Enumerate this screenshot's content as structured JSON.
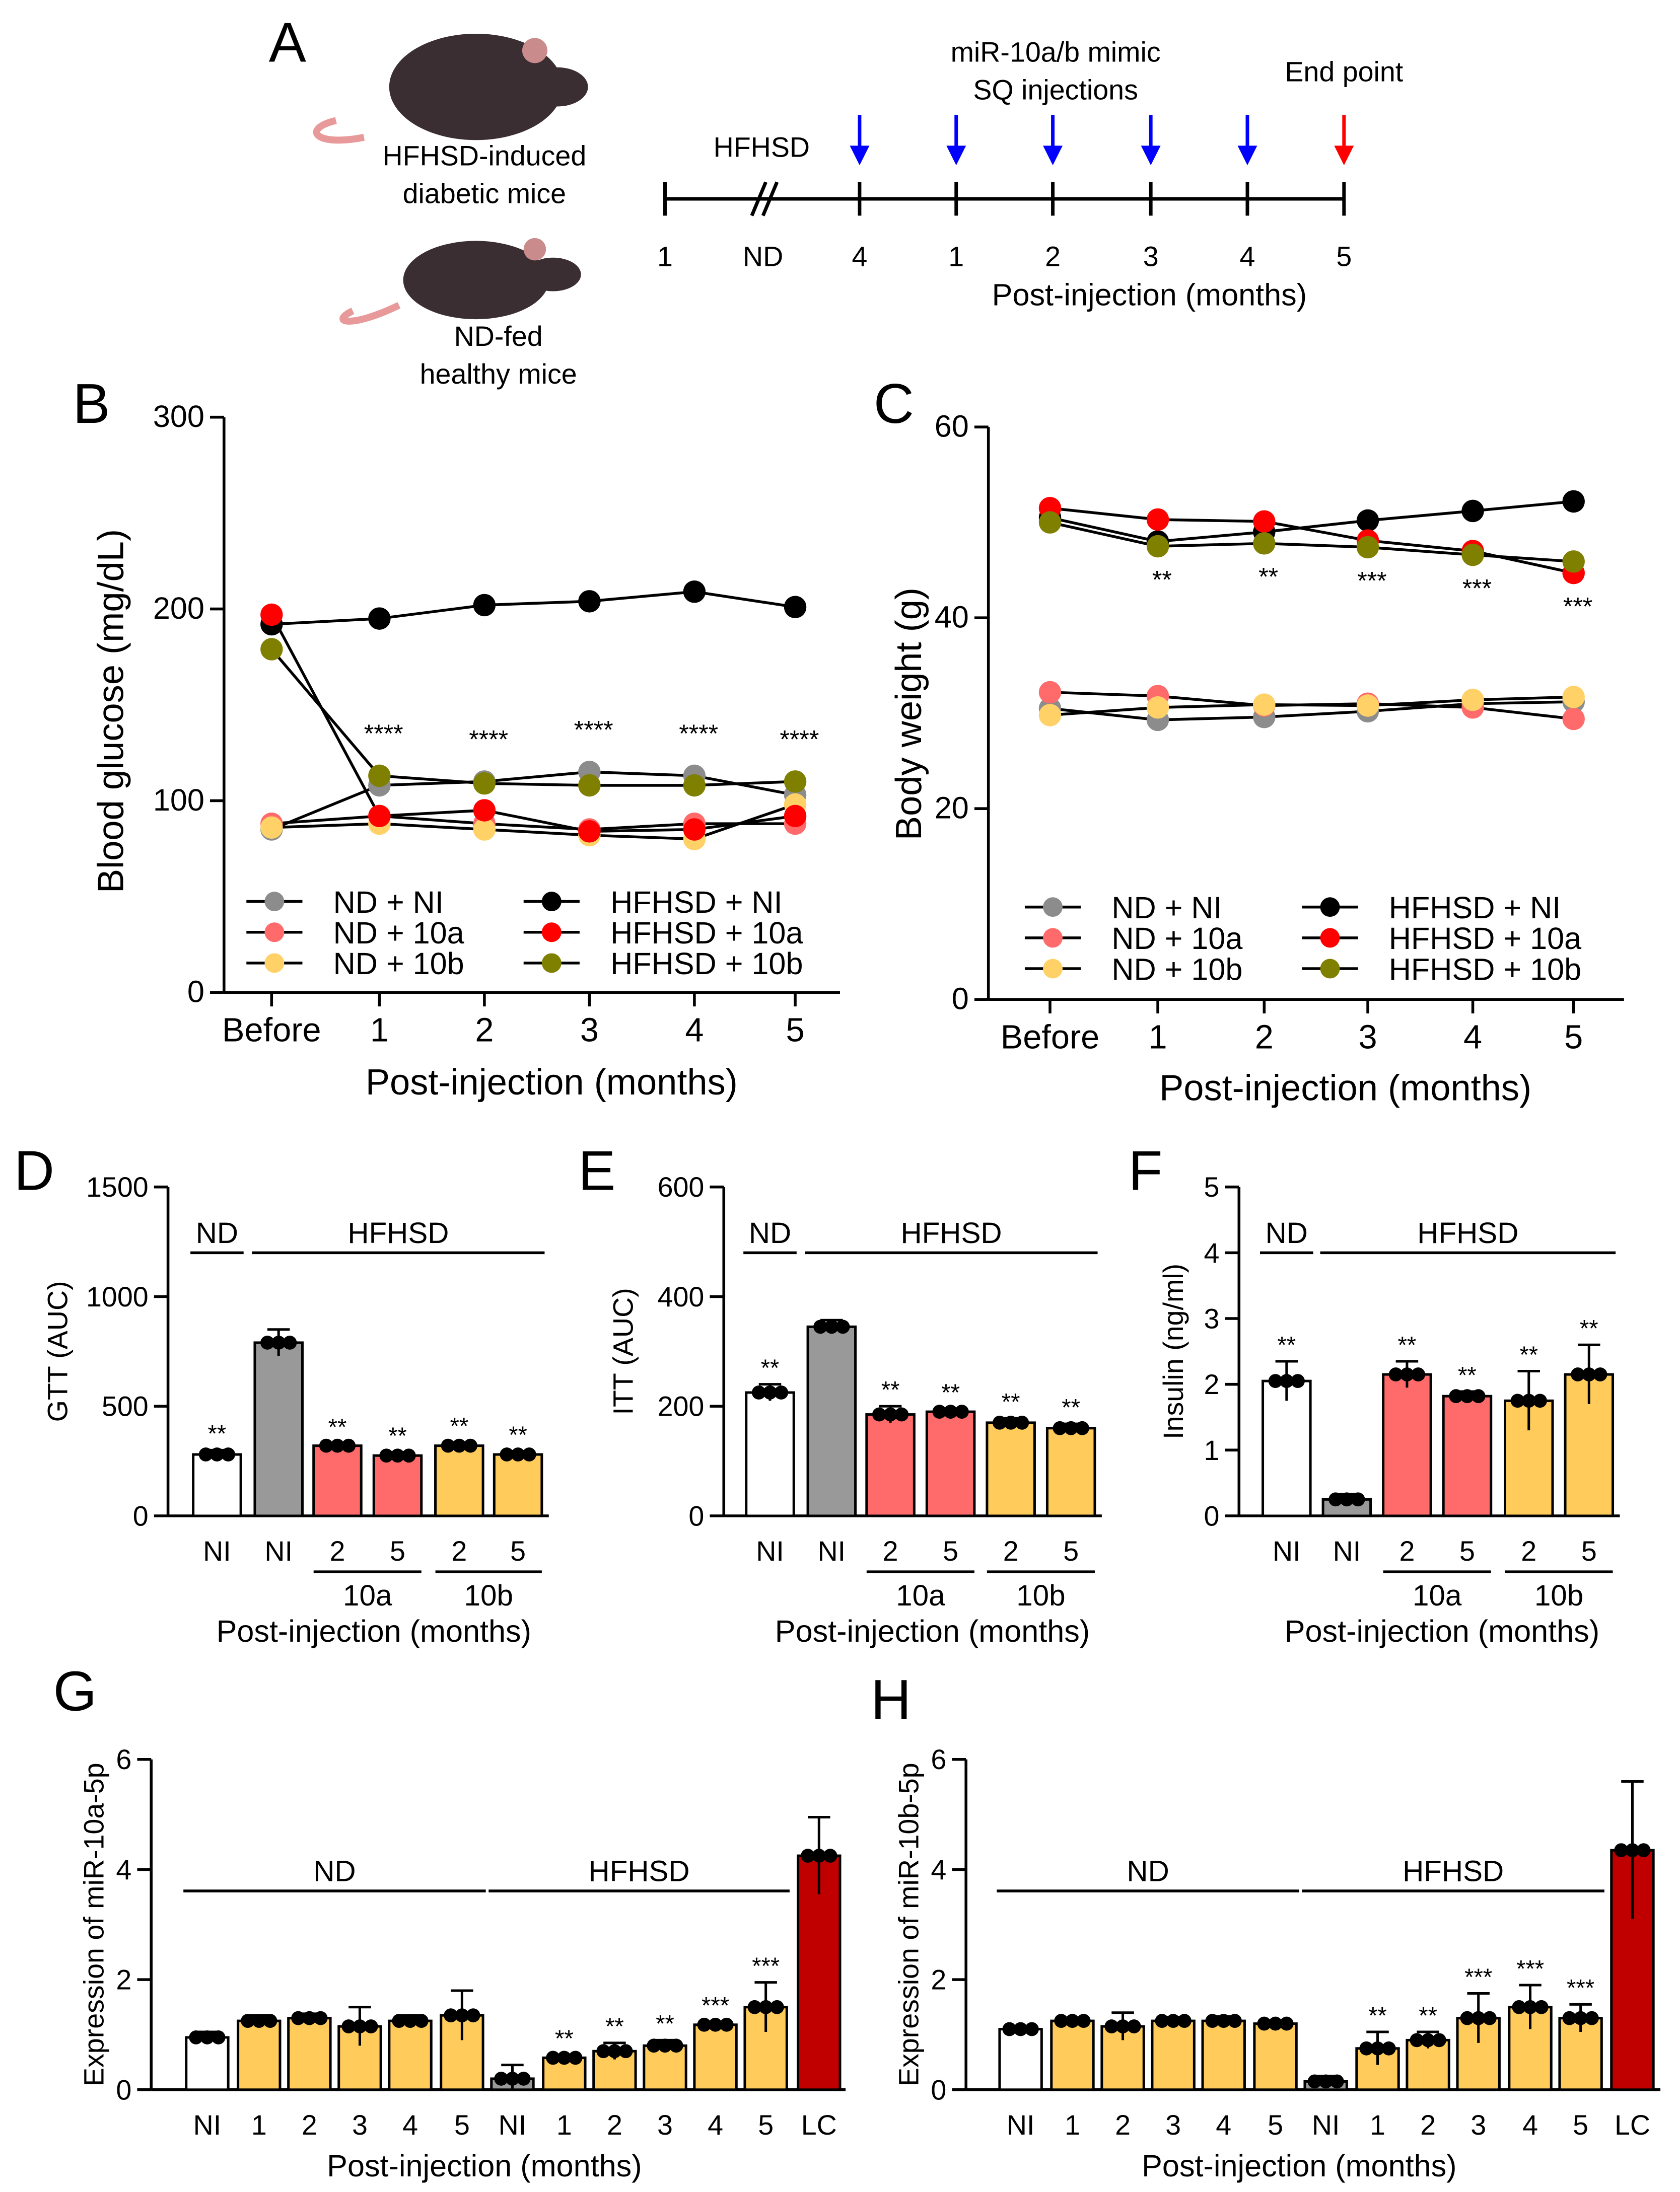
{
  "panel_labels": {
    "A": "A",
    "B": "B",
    "C": "C",
    "D": "D",
    "E": "E",
    "F": "F",
    "G": "G",
    "H": "H"
  },
  "colors": {
    "ND_NI": "#8c8c8c",
    "ND_10a": "#ff6b6b",
    "ND_10b": "#ffd166",
    "HFHSD_NI": "#000000",
    "HFHSD_10a": "#ff0000",
    "HFHSD_10b": "#7f7f00",
    "bar_white": "#ffffff",
    "bar_gray": "#999999",
    "bar_10a": "#ff6b6b",
    "bar_10b": "#ffcc5c",
    "bar_LC": "#c00000",
    "arrow_blue": "#0000ff",
    "arrow_red": "#ff0000"
  },
  "schematic": {
    "mouse1_label_line1": "HFHSD-induced",
    "mouse1_label_line2": "diabetic mice",
    "mouse2_label_line1": "ND-fed",
    "mouse2_label_line2": "healthy mice",
    "diet_label": "HFHSD",
    "injection_label_line1": "miR-10a/b mimic",
    "injection_label_line2": "SQ injections",
    "end_label": "End point",
    "ticks": [
      "1",
      "ND",
      "4",
      "1",
      "2",
      "3",
      "4",
      "5"
    ],
    "axis_label": "Post-injection (months)"
  },
  "chart_data": [
    {
      "id": "B",
      "type": "line",
      "xlabel": "Post-injection (months)",
      "ylabel": "Blood glucose  (mg/dL)",
      "categories": [
        "Before",
        "1",
        "2",
        "3",
        "4",
        "5"
      ],
      "ylim": [
        0,
        300
      ],
      "yticks": [
        0,
        100,
        200,
        300
      ],
      "legend": "bottom",
      "series": [
        {
          "name": "ND + NI",
          "color": "#8c8c8c",
          "values": [
            85,
            108,
            110,
            115,
            113,
            103
          ]
        },
        {
          "name": "ND + 10a",
          "color": "#ff6b6b",
          "values": [
            88,
            92,
            88,
            85,
            88,
            88
          ]
        },
        {
          "name": "ND + 10b",
          "color": "#ffd166",
          "values": [
            86,
            88,
            85,
            82,
            80,
            98
          ]
        },
        {
          "name": "HFHSD + NI",
          "color": "#000000",
          "values": [
            192,
            195,
            202,
            204,
            209,
            201
          ]
        },
        {
          "name": "HFHSD + 10a",
          "color": "#ff0000",
          "values": [
            197,
            92,
            95,
            84,
            85,
            92
          ]
        },
        {
          "name": "HFHSD + 10b",
          "color": "#7f7f00",
          "values": [
            179,
            113,
            109,
            108,
            108,
            110
          ]
        }
      ],
      "annotations": {
        "position": "above",
        "labels": [
          "",
          "****",
          "****",
          "****",
          "****",
          "****"
        ]
      }
    },
    {
      "id": "C",
      "type": "line",
      "xlabel": "Post-injection (months)",
      "ylabel": "Body weight (g)",
      "categories": [
        "Before",
        "1",
        "2",
        "3",
        "4",
        "5"
      ],
      "ylim": [
        0,
        60
      ],
      "yticks": [
        0,
        20,
        40,
        60
      ],
      "legend": "bottom",
      "series": [
        {
          "name": "ND + NI",
          "color": "#8c8c8c",
          "values": [
            30.5,
            29.3,
            29.6,
            30.2,
            31.0,
            31.2
          ]
        },
        {
          "name": "ND + 10a",
          "color": "#ff6b6b",
          "values": [
            32.2,
            31.8,
            30.8,
            31.0,
            30.6,
            29.4
          ]
        },
        {
          "name": "ND + 10b",
          "color": "#ffd166",
          "values": [
            29.8,
            30.6,
            30.9,
            30.8,
            31.4,
            31.7
          ]
        },
        {
          "name": "HFHSD + NI",
          "color": "#000000",
          "values": [
            50.5,
            48.0,
            49.0,
            50.2,
            51.2,
            52.2
          ]
        },
        {
          "name": "HFHSD + 10a",
          "color": "#ff0000",
          "values": [
            51.5,
            50.3,
            50.1,
            48.1,
            47.0,
            44.7
          ]
        },
        {
          "name": "HFHSD + 10b",
          "color": "#7f7f00",
          "values": [
            50.0,
            47.5,
            47.8,
            47.4,
            46.6,
            45.9
          ]
        }
      ],
      "annotations": {
        "position": "below",
        "labels": [
          "",
          "**",
          "**",
          "***",
          "***",
          "***"
        ]
      }
    },
    {
      "id": "D",
      "type": "bar",
      "xlabel": "Post-injection (months)",
      "ylabel": "GTT (AUC)",
      "categories": [
        "NI",
        "NI",
        "2",
        "5",
        "2",
        "5"
      ],
      "ylim": [
        0,
        1500
      ],
      "yticks": [
        0,
        500,
        1000,
        1500
      ],
      "values": [
        280,
        790,
        320,
        275,
        320,
        280
      ],
      "errors": [
        20,
        60,
        10,
        15,
        15,
        15
      ],
      "bar_colors": [
        "#ffffff",
        "#999999",
        "#ff6b6b",
        "#ff6b6b",
        "#ffcc5c",
        "#ffcc5c"
      ],
      "stars": [
        "**",
        "",
        "**",
        "**",
        "**",
        "**"
      ],
      "groups": [
        {
          "label": "ND",
          "from": 0,
          "to": 0
        },
        {
          "label": "HFHSD",
          "from": 1,
          "to": 5
        }
      ],
      "subgroups": [
        {
          "label": "10a",
          "from": 2,
          "to": 3
        },
        {
          "label": "10b",
          "from": 4,
          "to": 5
        }
      ]
    },
    {
      "id": "E",
      "type": "bar",
      "xlabel": "Post-injection (months)",
      "ylabel": "ITT (AUC)",
      "categories": [
        "NI",
        "NI",
        "2",
        "5",
        "2",
        "5"
      ],
      "ylim": [
        0,
        600
      ],
      "yticks": [
        0,
        200,
        400,
        600
      ],
      "values": [
        225,
        345,
        185,
        190,
        170,
        160
      ],
      "errors": [
        15,
        12,
        15,
        5,
        8,
        8
      ],
      "bar_colors": [
        "#ffffff",
        "#999999",
        "#ff6b6b",
        "#ff6b6b",
        "#ffcc5c",
        "#ffcc5c"
      ],
      "stars": [
        "**",
        "",
        "**",
        "**",
        "**",
        "**"
      ],
      "groups": [
        {
          "label": "ND",
          "from": 0,
          "to": 0
        },
        {
          "label": "HFHSD",
          "from": 1,
          "to": 5
        }
      ],
      "subgroups": [
        {
          "label": "10a",
          "from": 2,
          "to": 3
        },
        {
          "label": "10b",
          "from": 4,
          "to": 5
        }
      ]
    },
    {
      "id": "F",
      "type": "bar",
      "xlabel": "Post-injection (months)",
      "ylabel": "Insulin (ng/ml)",
      "categories": [
        "NI",
        "NI",
        "2",
        "5",
        "2",
        "5"
      ],
      "ylim": [
        0,
        5
      ],
      "yticks": [
        0,
        1,
        2,
        3,
        4,
        5
      ],
      "values": [
        2.05,
        0.25,
        2.15,
        1.82,
        1.75,
        2.15
      ],
      "errors": [
        0.3,
        0.08,
        0.2,
        0.07,
        0.45,
        0.45
      ],
      "bar_colors": [
        "#ffffff",
        "#999999",
        "#ff6b6b",
        "#ff6b6b",
        "#ffcc5c",
        "#ffcc5c"
      ],
      "stars": [
        "**",
        "",
        "**",
        "**",
        "**",
        "**"
      ],
      "groups": [
        {
          "label": "ND",
          "from": 0,
          "to": 0
        },
        {
          "label": "HFHSD",
          "from": 1,
          "to": 5
        }
      ],
      "subgroups": [
        {
          "label": "10a",
          "from": 2,
          "to": 3
        },
        {
          "label": "10b",
          "from": 4,
          "to": 5
        }
      ]
    },
    {
      "id": "G",
      "type": "bar",
      "xlabel": "Post-injection (months)",
      "ylabel": "Expression of miR-10a-5p",
      "categories": [
        "NI",
        "1",
        "2",
        "3",
        "4",
        "5",
        "NI",
        "1",
        "2",
        "3",
        "4",
        "5",
        "LC"
      ],
      "ylim": [
        0,
        6
      ],
      "yticks": [
        0,
        2,
        4,
        6
      ],
      "values": [
        0.95,
        1.25,
        1.3,
        1.15,
        1.25,
        1.35,
        0.2,
        0.58,
        0.7,
        0.8,
        1.18,
        1.5,
        4.25
      ],
      "errors": [
        0.1,
        0.1,
        0.08,
        0.35,
        0.1,
        0.45,
        0.25,
        0.05,
        0.15,
        0.1,
        0.05,
        0.45,
        0.7
      ],
      "bar_colors": [
        "#ffffff",
        "#ffcc5c",
        "#ffcc5c",
        "#ffcc5c",
        "#ffcc5c",
        "#ffcc5c",
        "#999999",
        "#ffcc5c",
        "#ffcc5c",
        "#ffcc5c",
        "#ffcc5c",
        "#ffcc5c",
        "#c00000"
      ],
      "stars": [
        "",
        "",
        "",
        "",
        "",
        "",
        "",
        "**",
        "**",
        "**",
        "***",
        "***",
        ""
      ],
      "groups": [
        {
          "label": "ND",
          "from": 0,
          "to": 5
        },
        {
          "label": "HFHSD",
          "from": 6,
          "to": 11
        }
      ],
      "subgroups": []
    },
    {
      "id": "H",
      "type": "bar",
      "xlabel": "Post-injection (months)",
      "ylabel": "Expression of miR-10b-5p",
      "categories": [
        "NI",
        "1",
        "2",
        "3",
        "4",
        "5",
        "NI",
        "1",
        "2",
        "3",
        "4",
        "5",
        "LC"
      ],
      "ylim": [
        0,
        6
      ],
      "yticks": [
        0,
        2,
        4,
        6
      ],
      "values": [
        1.1,
        1.25,
        1.15,
        1.25,
        1.25,
        1.2,
        0.15,
        0.75,
        0.9,
        1.3,
        1.5,
        1.3,
        4.35
      ],
      "errors": [
        0.05,
        0.05,
        0.25,
        0.07,
        0.08,
        0.05,
        0.1,
        0.3,
        0.15,
        0.45,
        0.4,
        0.25,
        1.25
      ],
      "bar_colors": [
        "#ffffff",
        "#ffcc5c",
        "#ffcc5c",
        "#ffcc5c",
        "#ffcc5c",
        "#ffcc5c",
        "#999999",
        "#ffcc5c",
        "#ffcc5c",
        "#ffcc5c",
        "#ffcc5c",
        "#ffcc5c",
        "#c00000"
      ],
      "stars": [
        "",
        "",
        "",
        "",
        "",
        "",
        "",
        "**",
        "**",
        "***",
        "***",
        "***",
        ""
      ],
      "groups": [
        {
          "label": "ND",
          "from": 0,
          "to": 5
        },
        {
          "label": "HFHSD",
          "from": 6,
          "to": 11
        }
      ],
      "subgroups": []
    }
  ]
}
